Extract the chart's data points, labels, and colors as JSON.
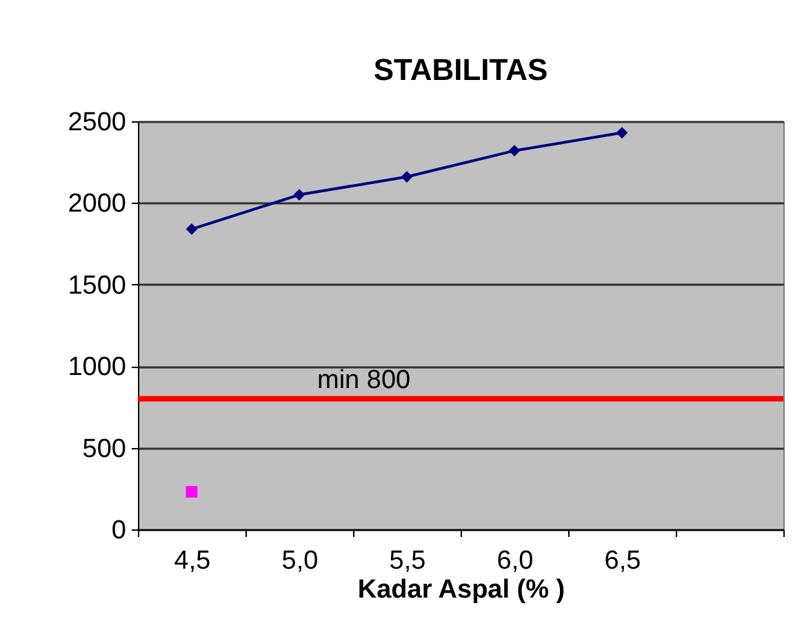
{
  "chart_data": {
    "type": "line",
    "title": "STABILITAS",
    "xlabel": "Kadar Aspal (% )",
    "categories": [
      "4,5",
      "5,0",
      "5,5",
      "6,0",
      "6,5",
      null
    ],
    "series": [
      {
        "color": "#000080",
        "marker": "diamond",
        "values": [
          1840,
          2050,
          2160,
          2320,
          2430,
          null
        ]
      },
      {
        "color": "#ff00ff",
        "marker": "square",
        "values": [
          230,
          null,
          null,
          null,
          null,
          null
        ]
      }
    ],
    "ylim": [
      0,
      2500
    ],
    "yticks": [
      0,
      500,
      1000,
      1500,
      2000,
      2500
    ],
    "grid": "y",
    "ref_lines": [
      {
        "axis": "y",
        "value": 800,
        "label": "min 800",
        "color": "#ff0000"
      }
    ]
  }
}
